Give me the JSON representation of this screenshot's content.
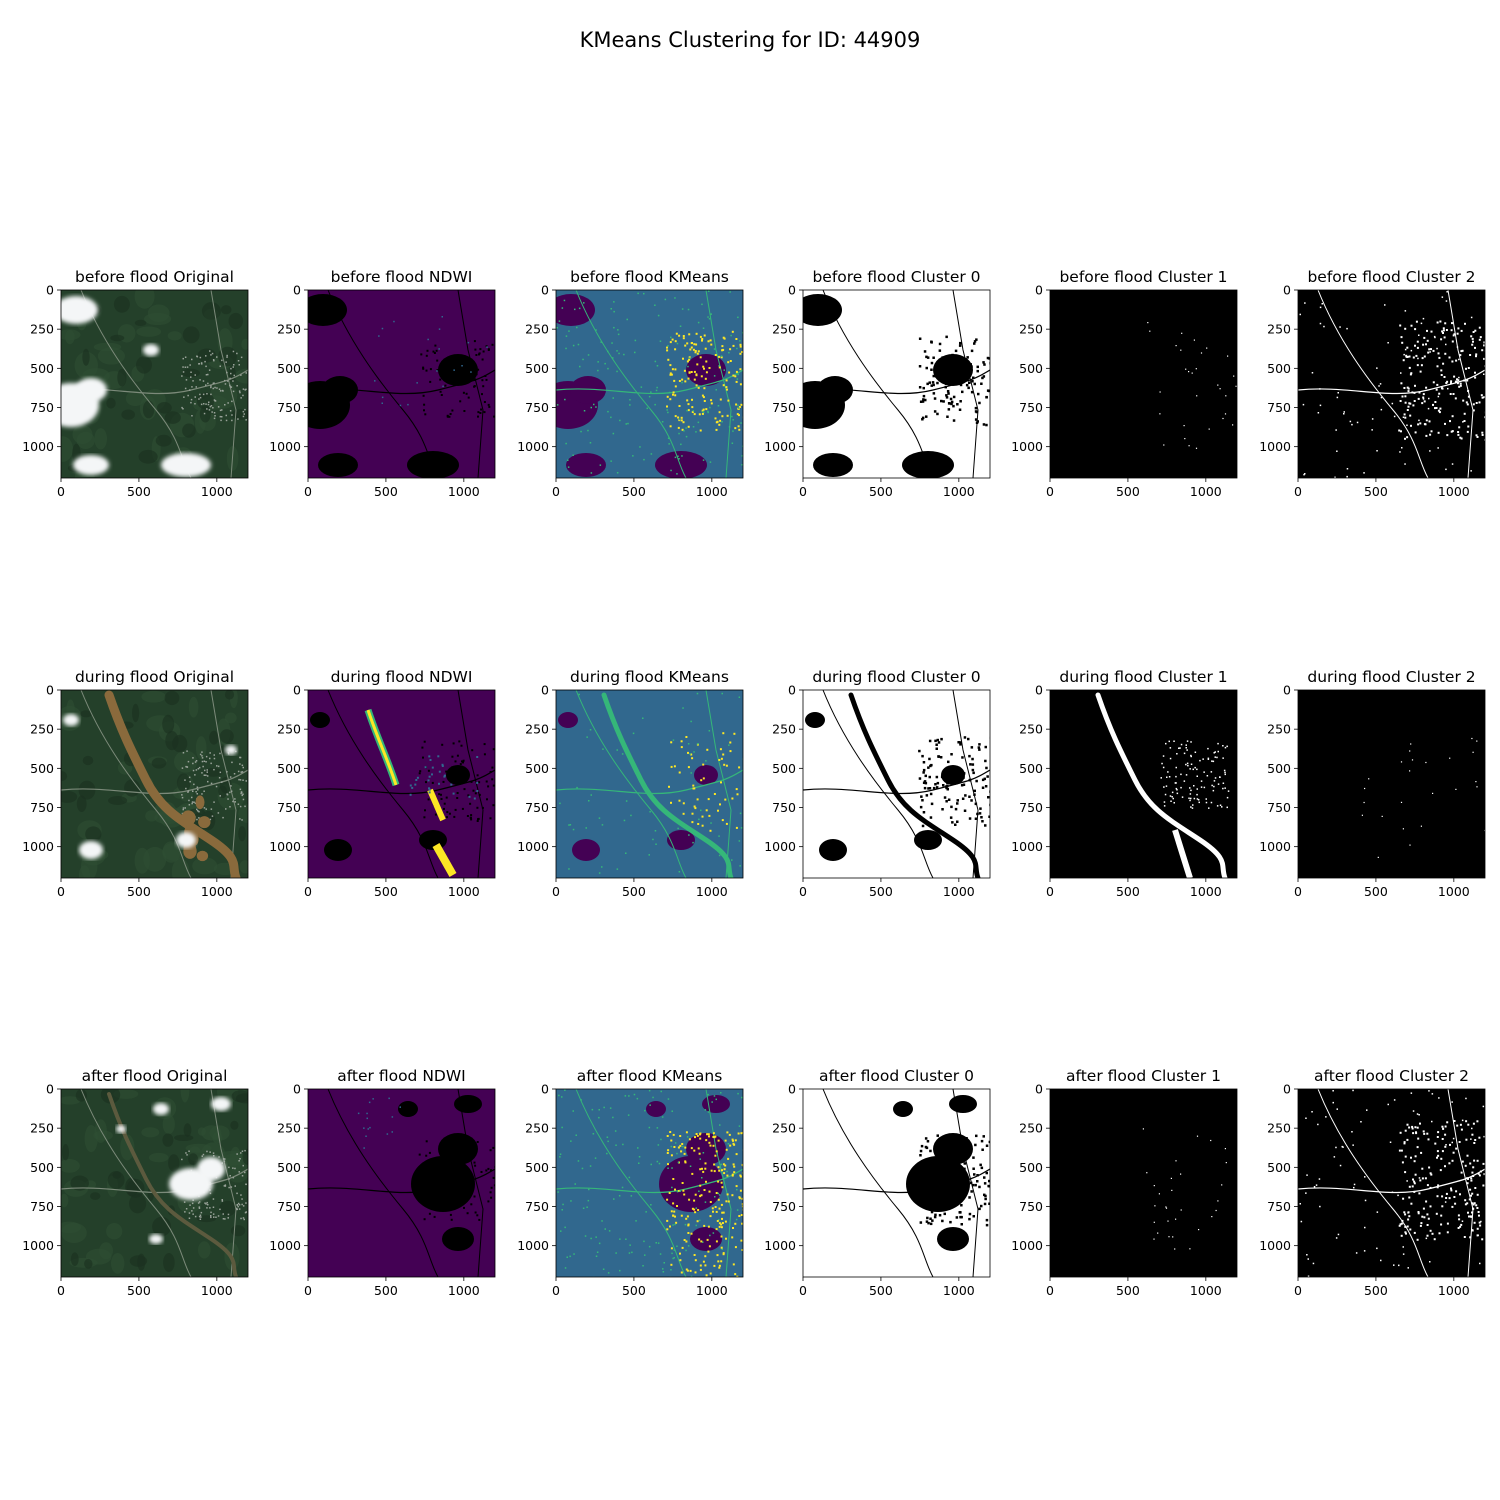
{
  "figure": {
    "title": "KMeans Clustering for ID: 44909"
  },
  "chart_data": {
    "type": "image-grid",
    "rows": [
      "before flood",
      "during flood",
      "after flood"
    ],
    "columns": [
      "Original",
      "NDWI",
      "KMeans",
      "Cluster 0",
      "Cluster 1",
      "Cluster 2"
    ],
    "panel_titles": [
      [
        "before flood Original",
        "before flood NDWI",
        "before flood KMeans",
        "before flood Cluster 0",
        "before flood Cluster 1",
        "before flood Cluster 2"
      ],
      [
        "during flood Original",
        "during flood NDWI",
        "during flood KMeans",
        "during flood Cluster 0",
        "during flood Cluster 1",
        "during flood Cluster 2"
      ],
      [
        "after flood Original",
        "after flood NDWI",
        "after flood KMeans",
        "after flood Cluster 0",
        "after flood Cluster 1",
        "after flood Cluster 2"
      ]
    ],
    "x_ticks": [
      "0",
      "500",
      "1000"
    ],
    "y_ticks": [
      "0",
      "250",
      "500",
      "750",
      "1000"
    ],
    "x_tick_values": [
      0,
      500,
      1000
    ],
    "y_tick_values": [
      0,
      250,
      500,
      750,
      1000
    ],
    "xlim": [
      0,
      1200
    ],
    "ylim": [
      1200,
      0
    ],
    "colors": {
      "viridis_dark": "#440154",
      "viridis_mid": "#31688e",
      "viridis_green": "#35b779",
      "viridis_yellow": "#fde725",
      "forest": "#24402a",
      "cloud": "#f4f6f7",
      "mask_white": "#ffffff",
      "mask_black": "#000000",
      "flood_brown": "#8a6a3c"
    }
  }
}
